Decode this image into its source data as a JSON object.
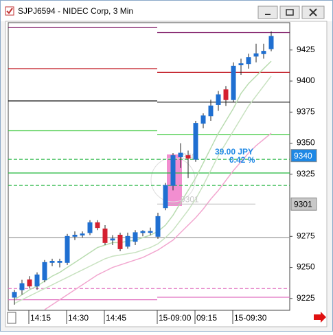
{
  "chart_data": {
    "type": "candlestick",
    "title": "SJPJ6594 - NIDEC Corp, 3 Min",
    "categories": [
      null,
      null,
      "14:15",
      null,
      null,
      null,
      null,
      "14:30",
      null,
      null,
      null,
      null,
      "14:45",
      null,
      null,
      null,
      null,
      null,
      null,
      "15-09:00",
      null,
      null,
      null,
      null,
      "09:15",
      null,
      null,
      null,
      null,
      "15-09:30",
      null,
      null,
      null,
      null,
      null
    ],
    "open": [
      9226,
      9232,
      9240,
      9235,
      9240,
      9254,
      9254,
      9254,
      9275,
      9276,
      9278,
      9286,
      9281,
      9272,
      9276,
      9267,
      9271,
      9278,
      9279,
      9275,
      9298,
      9316,
      9339,
      9340,
      9337,
      9366,
      9372,
      9381,
      9393,
      9385,
      9413,
      9414,
      9420,
      9422,
      9426
    ],
    "high": [
      9232,
      9240,
      9243,
      9246,
      9256,
      9257,
      9257,
      9277,
      9279,
      9279,
      9288,
      9288,
      9284,
      9276,
      9278,
      9278,
      9280,
      9280,
      9282,
      9294,
      9318,
      9342,
      9350,
      9344,
      9368,
      9374,
      9385,
      9392,
      9396,
      9415,
      9418,
      9422,
      9430,
      9430,
      9440
    ],
    "low": [
      9220,
      9228,
      9233,
      9232,
      9238,
      9251,
      9250,
      9252,
      9272,
      9274,
      9276,
      9280,
      9268,
      9268,
      9263,
      9265,
      9268,
      9275,
      9276,
      9273,
      9296,
      9312,
      9330,
      9322,
      9335,
      9362,
      9368,
      9376,
      9380,
      9383,
      9405,
      9410,
      9415,
      9418,
      9424
    ],
    "close": [
      9230,
      9237,
      9235,
      9244,
      9254,
      9255,
      9255,
      9275,
      9276,
      9277,
      9286,
      9282,
      9270,
      9273,
      9265,
      9275,
      9278,
      9279,
      9279,
      9291,
      9316,
      9340,
      9342,
      9338,
      9366,
      9372,
      9380,
      9389,
      9385,
      9412,
      9414,
      9419,
      9422,
      9424,
      9436
    ],
    "up_color": "#1f6fd1",
    "down_color": "#d42030",
    "lines": [
      {
        "color": "#b9dcb0",
        "values": [
          9224,
          9228,
          9232,
          9235,
          9239,
          9243,
          9246,
          9250,
          9254,
          9258,
          9262,
          9266,
          9268,
          9270,
          9270,
          9271,
          9272,
          9274,
          9276,
          9279,
          9284,
          9292,
          9302,
          9312,
          9322,
          9334,
          9346,
          9358,
          9368,
          9378,
          9390,
          9398,
          9404,
          9410,
          9416
        ]
      },
      {
        "color": "#c8e2c0",
        "values": [
          9221,
          9224,
          9227,
          9230,
          9233,
          9236,
          9239,
          9242,
          9245,
          9248,
          9251,
          9254,
          9257,
          9259,
          9260,
          9261,
          9262,
          9264,
          9266,
          9269,
          9274,
          9280,
          9288,
          9296,
          9305,
          9316,
          9328,
          9340,
          9350,
          9360,
          9370,
          9380,
          9388,
          9396,
          9404
        ]
      },
      {
        "color": "#f2a6cf",
        "values": [
          null,
          null,
          null,
          null,
          9216,
          9220,
          9224,
          9228,
          9232,
          9236,
          9240,
          9244,
          9247,
          9250,
          9252,
          9254,
          9256,
          9258,
          9261,
          9264,
          9268,
          9272,
          9278,
          9284,
          9290,
          9297,
          9305,
          9312,
          9320,
          9328,
          9335,
          9342,
          9348,
          9353,
          9358
        ]
      }
    ],
    "levels": [
      {
        "color": "#7a1060",
        "dashed": false,
        "values": [
          9443,
          9439
        ]
      },
      {
        "color": "#c0141e",
        "dashed": false,
        "values": [
          9410,
          9407
        ]
      },
      {
        "color": "#111111",
        "dashed": false,
        "values": [
          9384,
          9383
        ]
      },
      {
        "color": "#3cc83c",
        "dashed": false,
        "values": [
          9360,
          9357
        ]
      },
      {
        "color": "#2fb84a",
        "dashed": true,
        "values": [
          9337,
          9337
        ]
      },
      {
        "color": "#22b83a",
        "dashed": false,
        "values": [
          9326,
          9326
        ]
      },
      {
        "color": "#2fb84a",
        "dashed": true,
        "values": [
          9316,
          9316
        ]
      },
      {
        "color": "#999999",
        "dashed": false,
        "values": [
          9274,
          9274
        ]
      },
      {
        "color": "#e070c0",
        "dashed": true,
        "values": [
          9233,
          9233
        ]
      },
      {
        "color": "#e070c0",
        "dashed": false,
        "values": [
          9224,
          9226
        ]
      }
    ],
    "ylim": [
      9215.5,
      9447
    ],
    "yticks": [
      9225,
      9250,
      9275,
      9325,
      9350,
      9375,
      9400,
      9425
    ],
    "price_marks": [
      {
        "value": 9340,
        "label": "9340",
        "color": "#1e88e5"
      },
      {
        "value": 9301,
        "label": "9301",
        "color": "#c8c8c8"
      }
    ],
    "annotations": [
      "39.00 JPY",
      "0.42 %"
    ]
  }
}
